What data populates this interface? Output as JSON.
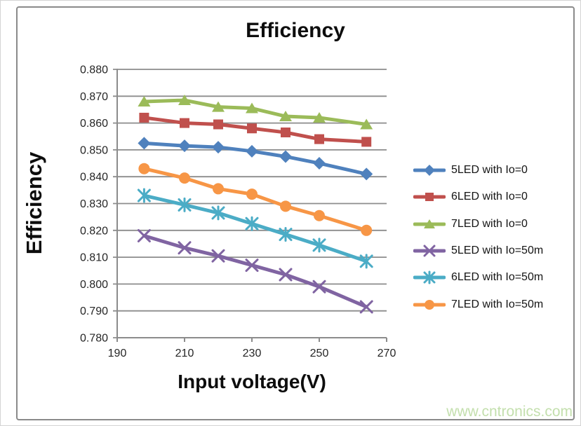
{
  "window": {
    "watermark": "www.cntronics.com"
  },
  "chart_data": {
    "type": "line",
    "title": "Efficiency",
    "xlabel": "Input voltage(V)",
    "ylabel": "Efficiency",
    "grid": true,
    "legend_position": "right",
    "xlim": [
      190,
      270
    ],
    "ylim": [
      0.78,
      0.88
    ],
    "x_ticks": [
      190,
      210,
      230,
      250,
      270
    ],
    "y_ticks": [
      "0.880",
      "0.870",
      "0.860",
      "0.850",
      "0.840",
      "0.830",
      "0.820",
      "0.810",
      "0.800",
      "0.790",
      "0.780"
    ],
    "x": [
      198,
      210,
      220,
      230,
      240,
      250,
      264
    ],
    "series": [
      {
        "name": "5LED with Io=0",
        "color": "#4F81BD",
        "marker": "diamond",
        "values": [
          0.8525,
          0.8515,
          0.851,
          0.8495,
          0.8475,
          0.845,
          0.841
        ]
      },
      {
        "name": "6LED with Io=0",
        "color": "#C0504D",
        "marker": "square",
        "values": [
          0.862,
          0.86,
          0.8595,
          0.858,
          0.8565,
          0.854,
          0.853
        ]
      },
      {
        "name": "7LED with Io=0",
        "color": "#9BBB59",
        "marker": "triangle",
        "values": [
          0.868,
          0.8685,
          0.866,
          0.8655,
          0.8625,
          0.862,
          0.8595
        ]
      },
      {
        "name": "5LED with Io=50m",
        "color": "#8064A2",
        "marker": "x",
        "values": [
          0.818,
          0.8135,
          0.8105,
          0.807,
          0.8035,
          0.799,
          0.7915
        ]
      },
      {
        "name": "6LED with Io=50m",
        "color": "#4BACC6",
        "marker": "asterisk",
        "values": [
          0.833,
          0.8295,
          0.8265,
          0.8225,
          0.8185,
          0.8145,
          0.8085
        ]
      },
      {
        "name": "7LED with Io=50m",
        "color": "#F79646",
        "marker": "circle",
        "values": [
          0.843,
          0.8395,
          0.8355,
          0.8335,
          0.829,
          0.8255,
          0.82
        ]
      }
    ]
  }
}
